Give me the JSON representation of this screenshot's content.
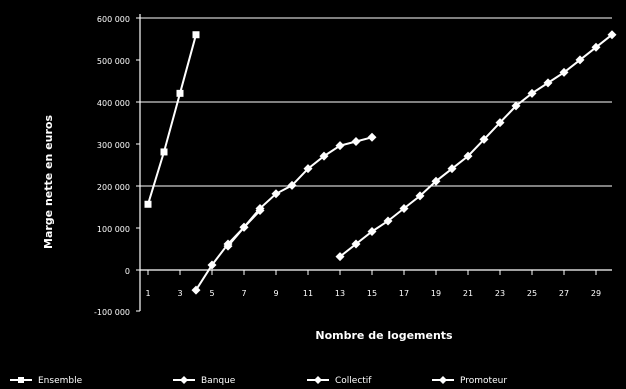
{
  "chart_data": {
    "type": "line",
    "title": "",
    "xlabel": "Nombre de logements",
    "ylabel": "Marge nette en euros",
    "y_ticks": [
      "600 000",
      "500 000",
      "400 000",
      "300 000",
      "200 000",
      "100 000",
      "0",
      "-100 000"
    ],
    "x_ticks": [
      "1",
      "3",
      "5",
      "7",
      "9",
      "11",
      "13",
      "15",
      "17",
      "19",
      "21",
      "23",
      "25",
      "27",
      "29"
    ],
    "ylim": [
      -100000,
      600000
    ],
    "xlim": [
      0.5,
      30
    ],
    "grid": "horizontal",
    "legend": "bottom",
    "colors": {
      "background": "#000000",
      "plot_background": "#000000",
      "lines": "#ffffff",
      "grid": "#ffffff",
      "text": "#ffffff"
    },
    "series": [
      {
        "name": "Ensemble",
        "x": [
          1,
          2,
          3,
          4
        ],
        "y": [
          155000,
          280000,
          420000,
          560000
        ]
      },
      {
        "name": "Banque",
        "x": [
          4,
          5,
          6,
          7,
          8
        ],
        "y": [
          -50000,
          10000,
          60000,
          100000,
          140000
        ]
      },
      {
        "name": "Collectif",
        "x": [
          6,
          7,
          8,
          9,
          10,
          11,
          12,
          13,
          14,
          15
        ],
        "y": [
          55000,
          100000,
          145000,
          180000,
          200000,
          240000,
          270000,
          295000,
          305000,
          315000
        ]
      },
      {
        "name": "Promoteur",
        "x": [
          13,
          14,
          15,
          16,
          17,
          18,
          19,
          20,
          21,
          22,
          23,
          24,
          25,
          26,
          27,
          28,
          29,
          30
        ],
        "y": [
          30000,
          60000,
          90000,
          115000,
          145000,
          175000,
          210000,
          240000,
          270000,
          310000,
          350000,
          390000,
          420000,
          445000,
          470000,
          500000,
          530000,
          560000
        ]
      }
    ]
  }
}
